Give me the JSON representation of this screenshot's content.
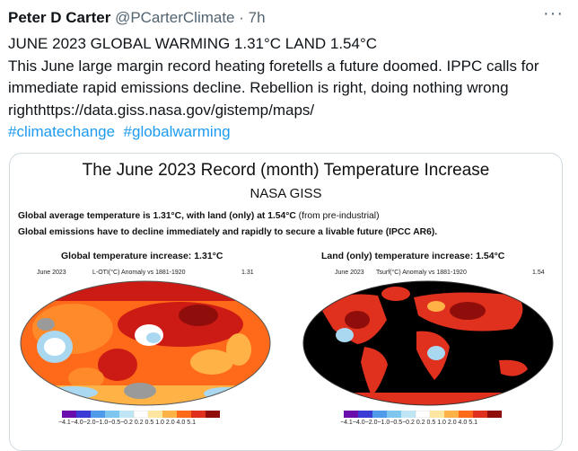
{
  "tweet": {
    "author_name": "Peter D Carter",
    "handle": "@PCarterClimate",
    "separator": "·",
    "time": "7h",
    "more": "···",
    "line1": "JUNE 2023 GLOBAL WARMING 1.31°C LAND 1.54°C",
    "line2": "This June large margin record heating foretells a future doomed. IPPC calls for immediate rapid emissions decline. Rebellion is right, doing nothing wrong   righthttps://data.giss.nasa.gov/gistemp/maps/",
    "hashtag1": "#climatechange",
    "hashtag2": "#globalwarming"
  },
  "media": {
    "title": "The June 2023 Record (month) Temperature Increase",
    "subtitle": "NASA GISS",
    "line1_bold": "Global average temperature is 1.31°C, with land (only) at 1.54°C",
    "line1_tail": " (from pre-industrial)",
    "line2": "Global emissions have to decline immediately and rapidly to secure a livable future (IPCC AR6).",
    "left_panel": {
      "heading": "Global temperature increase: 1.31°C",
      "date": "June 2023",
      "desc": "L-OTI(°C) Anomaly vs 1881-1920",
      "value": "1.31"
    },
    "right_panel": {
      "heading": "Land (only) temperature increase: 1.54°C",
      "date": "June 2023",
      "desc": "Tsurf(°C) Anomaly vs 1881-1920",
      "value": "1.54"
    },
    "colorbar_labels": "−4.1−4.0−2.0−1.0−0.5−0.2 0.2  0.5  1.0  2.0  4.0  5.1",
    "colors": {
      "ocean_warm": "#ff6a1a",
      "hot": "#cc1a14",
      "very_hot": "#8f0e0b",
      "mild": "#ffb347",
      "neutral": "#ffffff",
      "cool": "#a9d8f0",
      "missing": "#9a9a9a",
      "land_background": "#000000",
      "land_fill": "#e0301e"
    }
  }
}
